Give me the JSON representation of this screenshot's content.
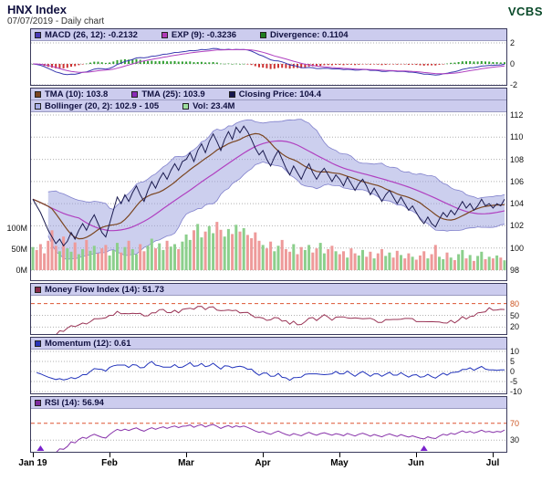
{
  "header": {
    "title": "HNX Index",
    "subtitle": "07/07/2019 - Daily chart",
    "brand": "VCBS"
  },
  "panels": {
    "macd": {
      "legend": [
        {
          "text": "MACD (26, 12): -0.2132",
          "swatch": "#4a3ab8"
        },
        {
          "text": "EXP (9): -0.3236",
          "swatch": "#b13ab8"
        },
        {
          "text": "Divergence: 0.1104",
          "swatch": "#1e7d1e"
        }
      ],
      "ticks": [
        {
          "label": "2",
          "v": 2
        },
        {
          "label": "0",
          "v": 0
        },
        {
          "label": "-2",
          "v": -2
        }
      ]
    },
    "price": {
      "legend_rows": [
        [
          {
            "text": "TMA (10): 103.8",
            "swatch": "#7a4520"
          },
          {
            "text": "TMA (25): 103.9",
            "swatch": "#8a2ab8"
          },
          {
            "text": "Closing Price: 104.4",
            "swatch": "#15154d"
          }
        ],
        [
          {
            "text": "Bollinger (20, 2): 102.9 - 105",
            "swatch": "#a8aee8"
          },
          {
            "text": "Vol: 23.4M",
            "swatch": "#9fdf9f"
          }
        ]
      ],
      "ticks": [
        {
          "label": "112",
          "v": 112
        },
        {
          "label": "110",
          "v": 110
        },
        {
          "label": "108",
          "v": 108
        },
        {
          "label": "106",
          "v": 106
        },
        {
          "label": "104",
          "v": 104
        },
        {
          "label": "102",
          "v": 102
        },
        {
          "label": "100",
          "v": 100
        },
        {
          "label": "98",
          "v": 98
        }
      ],
      "vol_ticks": [
        {
          "label": "100M",
          "m": 100
        },
        {
          "label": "50M",
          "m": 50
        },
        {
          "label": "0M",
          "m": 0
        }
      ]
    },
    "mfi": {
      "legend": [
        {
          "text": "Money Flow Index (14): 51.73",
          "swatch": "#8a2a4a"
        }
      ],
      "ticks": [
        {
          "label": "80",
          "v": 80,
          "color": "#cc5522",
          "threshold": true
        },
        {
          "label": "50",
          "v": 50
        },
        {
          "label": "20",
          "v": 20
        }
      ]
    },
    "momentum": {
      "legend": [
        {
          "text": "Momentum (12): 0.61",
          "swatch": "#2a35b8"
        }
      ],
      "ticks": [
        {
          "label": "10",
          "v": 10
        },
        {
          "label": "5",
          "v": 5
        },
        {
          "label": "0",
          "v": 0
        },
        {
          "label": "-5",
          "v": -5
        },
        {
          "label": "-10",
          "v": -10
        }
      ]
    },
    "rsi": {
      "legend": [
        {
          "text": "RSI (14): 56.94",
          "swatch": "#7d2a9f"
        }
      ],
      "ticks": [
        {
          "label": "70",
          "v": 70,
          "color": "#cc5522",
          "threshold": true
        },
        {
          "label": "30",
          "v": 30
        }
      ]
    }
  },
  "chart_data": {
    "type": "line",
    "title": "HNX Index - Daily chart",
    "date": "07/07/2019",
    "x_unit": "trading-day",
    "x_tick_labels": [
      "Jan 19",
      "Feb",
      "Mar",
      "Apr",
      "May",
      "Jun",
      "Jul"
    ],
    "x_tick_indices": [
      0,
      20,
      40,
      60,
      80,
      100,
      120
    ],
    "axis_ranges": {
      "price": [
        98,
        112
      ],
      "macd": [
        -2,
        2
      ],
      "mfi": [
        0,
        100
      ],
      "momentum": [
        -10,
        10
      ],
      "rsi": [
        0,
        100
      ]
    },
    "close": [
      104.4,
      103.8,
      103.2,
      102.4,
      101.6,
      101.0,
      100.4,
      100.8,
      100.2,
      100.6,
      101.4,
      100.8,
      101.6,
      102.2,
      101.6,
      102.4,
      103.0,
      102.2,
      101.4,
      101.0,
      102.2,
      103.4,
      104.6,
      104.0,
      104.8,
      104.2,
      105.0,
      105.6,
      104.8,
      104.2,
      105.2,
      106.0,
      105.4,
      106.2,
      106.8,
      106.2,
      107.0,
      107.6,
      107.0,
      107.8,
      108.0,
      108.6,
      107.8,
      108.8,
      109.4,
      108.6,
      109.6,
      110.3,
      109.6,
      108.8,
      109.8,
      110.5,
      109.8,
      110.9,
      110.4,
      111.0,
      110.5,
      109.8,
      109.0,
      108.4,
      108.8,
      108.0,
      107.4,
      108.2,
      108.8,
      108.0,
      107.2,
      106.6,
      107.4,
      106.8,
      106.2,
      107.0,
      107.6,
      106.8,
      106.2,
      106.8,
      107.2,
      106.6,
      106.0,
      106.6,
      106.2,
      105.6,
      106.4,
      105.8,
      105.2,
      105.8,
      106.2,
      105.6,
      104.8,
      105.4,
      104.8,
      104.2,
      104.8,
      105.2,
      104.6,
      104.0,
      104.6,
      104.0,
      103.4,
      103.8,
      103.2,
      102.6,
      102.2,
      102.8,
      102.2,
      101.9,
      102.6,
      103.2,
      102.8,
      103.4,
      103.0,
      103.6,
      104.2,
      103.6,
      104.0,
      103.4,
      103.8,
      104.4,
      103.8,
      104.0,
      103.6,
      104.0,
      103.8,
      104.4
    ],
    "volume_m": [
      55,
      48,
      62,
      40,
      70,
      95,
      58,
      45,
      80,
      52,
      44,
      66,
      38,
      50,
      72,
      46,
      58,
      40,
      52,
      60,
      35,
      48,
      65,
      42,
      55,
      70,
      50,
      38,
      62,
      45,
      58,
      75,
      52,
      64,
      48,
      70,
      56,
      62,
      50,
      68,
      85,
      72,
      95,
      110,
      78,
      92,
      105,
      88,
      115,
      96,
      80,
      98,
      86,
      108,
      92,
      100,
      84,
      76,
      90,
      70,
      60,
      52,
      68,
      45,
      58,
      72,
      50,
      44,
      62,
      38,
      55,
      48,
      60,
      42,
      52,
      65,
      40,
      50,
      58,
      45,
      38,
      45,
      30,
      52,
      40,
      35,
      48,
      32,
      44,
      28,
      40,
      50,
      34,
      42,
      30,
      46,
      36,
      28,
      40,
      32,
      25,
      35,
      45,
      28,
      38,
      60,
      32,
      26,
      42,
      30,
      24,
      38,
      48,
      28,
      36,
      22,
      34,
      44,
      26,
      32,
      28,
      35,
      30,
      23.4
    ],
    "markers": [
      2,
      102
    ],
    "series_notes": {
      "overlays": [
        "TMA(10)",
        "TMA(25)",
        "Bollinger(20,2)",
        "Volume"
      ],
      "lower_panels": [
        "MACD(26,12) with EXP(9) signal and divergence histogram",
        "Money Flow Index(14)",
        "Momentum(12)",
        "RSI(14)"
      ]
    }
  },
  "colors": {
    "legend_bg": "#ccccee",
    "panel_border": "#3a3a5c",
    "grid": "#b0b0b0",
    "threshold": "#dd5533",
    "close_line": "#1a1a4e",
    "tma10": "#7a4520",
    "tma25": "#b040c0",
    "boll_fill": "#9aa0dd",
    "boll_edge": "#8080cc",
    "vol_up": "#8ccf8c",
    "vol_down": "#ee9a9a",
    "macd_line": "#3a3ab0",
    "exp_line": "#b040c0",
    "hist_up": "#2f9e2f",
    "hist_down": "#cc3333",
    "mfi_line": "#993355",
    "momentum_line": "#2233bb",
    "rsi_line": "#8833aa",
    "rsi_fill": "#e03030",
    "marker": "#7a22cc"
  }
}
